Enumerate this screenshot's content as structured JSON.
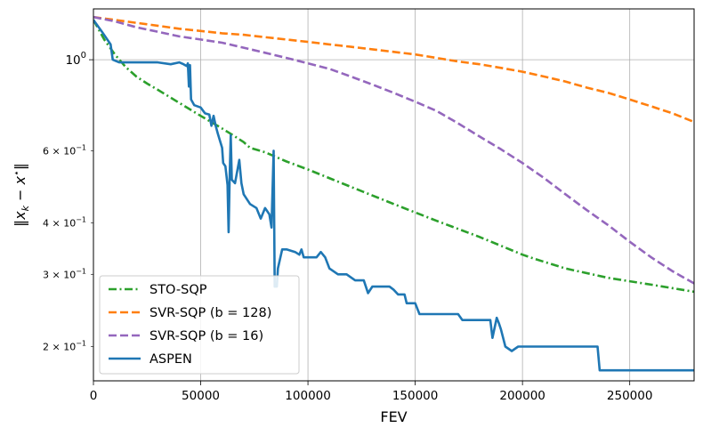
{
  "chart_data": {
    "type": "line",
    "xlabel": "FEV",
    "ylabel": "‖x_k − x*‖",
    "xlim": [
      0,
      280000
    ],
    "ylim": [
      0.165,
      1.33
    ],
    "yscale": "log",
    "grid": true,
    "legend_loc": "lower-left",
    "x_ticks": [
      {
        "value": 0,
        "label": "0"
      },
      {
        "value": 50000,
        "label": "50000"
      },
      {
        "value": 100000,
        "label": "100000"
      },
      {
        "value": 150000,
        "label": "150000"
      },
      {
        "value": 200000,
        "label": "200000"
      },
      {
        "value": 250000,
        "label": "250000"
      }
    ],
    "y_major_ticks": [
      {
        "value": 1.0,
        "label": "10^0",
        "mantissa": "",
        "exponent": "0"
      }
    ],
    "y_minor_ticks": [
      {
        "value": 0.2,
        "mantissa": "2",
        "exponent": "−1"
      },
      {
        "value": 0.3,
        "mantissa": "3",
        "exponent": "−1"
      },
      {
        "value": 0.4,
        "mantissa": "4",
        "exponent": "−1"
      },
      {
        "value": 0.6,
        "mantissa": "6",
        "exponent": "−1"
      }
    ],
    "series": [
      {
        "name": "STO-SQP",
        "color": "#2ca02c",
        "dash": "dashdot",
        "points": [
          [
            0,
            1.25
          ],
          [
            5000,
            1.12
          ],
          [
            10000,
            1.03
          ],
          [
            15000,
            0.96
          ],
          [
            20000,
            0.91
          ],
          [
            25000,
            0.875
          ],
          [
            30000,
            0.845
          ],
          [
            40000,
            0.785
          ],
          [
            50000,
            0.73
          ],
          [
            60000,
            0.68
          ],
          [
            65000,
            0.655
          ],
          [
            70000,
            0.63
          ],
          [
            73000,
            0.61
          ],
          [
            80000,
            0.595
          ],
          [
            90000,
            0.565
          ],
          [
            100000,
            0.54
          ],
          [
            120000,
            0.49
          ],
          [
            140000,
            0.445
          ],
          [
            160000,
            0.405
          ],
          [
            180000,
            0.37
          ],
          [
            200000,
            0.335
          ],
          [
            205000,
            0.328
          ],
          [
            220000,
            0.31
          ],
          [
            240000,
            0.294
          ],
          [
            260000,
            0.283
          ],
          [
            280000,
            0.272
          ]
        ]
      },
      {
        "name": "SVR-SQP  (b = 128)",
        "color": "#ff7f0e",
        "dash": "dashed",
        "points": [
          [
            0,
            1.27
          ],
          [
            10000,
            1.25
          ],
          [
            20000,
            1.23
          ],
          [
            30000,
            1.21
          ],
          [
            40000,
            1.19
          ],
          [
            50000,
            1.175
          ],
          [
            60000,
            1.16
          ],
          [
            70000,
            1.15
          ],
          [
            80000,
            1.135
          ],
          [
            90000,
            1.12
          ],
          [
            100000,
            1.105
          ],
          [
            110000,
            1.09
          ],
          [
            120000,
            1.075
          ],
          [
            130000,
            1.06
          ],
          [
            140000,
            1.045
          ],
          [
            150000,
            1.03
          ],
          [
            160000,
            1.01
          ],
          [
            170000,
            0.99
          ],
          [
            180000,
            0.975
          ],
          [
            190000,
            0.955
          ],
          [
            200000,
            0.935
          ],
          [
            210000,
            0.91
          ],
          [
            220000,
            0.885
          ],
          [
            230000,
            0.855
          ],
          [
            240000,
            0.83
          ],
          [
            250000,
            0.8
          ],
          [
            260000,
            0.77
          ],
          [
            270000,
            0.74
          ],
          [
            280000,
            0.705
          ]
        ]
      },
      {
        "name": "SVR-SQP  (b = 16)",
        "color": "#9467bd",
        "dash": "dashed",
        "points": [
          [
            0,
            1.27
          ],
          [
            10000,
            1.24
          ],
          [
            20000,
            1.2
          ],
          [
            30000,
            1.17
          ],
          [
            40000,
            1.14
          ],
          [
            50000,
            1.12
          ],
          [
            60000,
            1.1
          ],
          [
            70000,
            1.07
          ],
          [
            80000,
            1.04
          ],
          [
            90000,
            1.01
          ],
          [
            100000,
            0.98
          ],
          [
            110000,
            0.95
          ],
          [
            120000,
            0.91
          ],
          [
            130000,
            0.87
          ],
          [
            140000,
            0.83
          ],
          [
            150000,
            0.79
          ],
          [
            160000,
            0.75
          ],
          [
            170000,
            0.7
          ],
          [
            180000,
            0.65
          ],
          [
            190000,
            0.605
          ],
          [
            200000,
            0.56
          ],
          [
            210000,
            0.515
          ],
          [
            220000,
            0.47
          ],
          [
            230000,
            0.43
          ],
          [
            240000,
            0.395
          ],
          [
            250000,
            0.36
          ],
          [
            260000,
            0.33
          ],
          [
            270000,
            0.305
          ],
          [
            280000,
            0.285
          ]
        ]
      },
      {
        "name": "ASPEN",
        "color": "#1f77b4",
        "dash": "solid",
        "points": [
          [
            0,
            1.25
          ],
          [
            4000,
            1.17
          ],
          [
            8000,
            1.09
          ],
          [
            9000,
            1.0
          ],
          [
            12000,
            0.985
          ],
          [
            20000,
            0.985
          ],
          [
            30000,
            0.985
          ],
          [
            36000,
            0.975
          ],
          [
            40000,
            0.985
          ],
          [
            42000,
            0.975
          ],
          [
            43500,
            0.965
          ],
          [
            44000,
            0.98
          ],
          [
            44500,
            0.86
          ],
          [
            45000,
            0.97
          ],
          [
            45500,
            0.8
          ],
          [
            47000,
            0.775
          ],
          [
            50000,
            0.765
          ],
          [
            52000,
            0.74
          ],
          [
            54000,
            0.735
          ],
          [
            55000,
            0.69
          ],
          [
            56000,
            0.73
          ],
          [
            57000,
            0.69
          ],
          [
            58000,
            0.66
          ],
          [
            60000,
            0.61
          ],
          [
            60500,
            0.56
          ],
          [
            61500,
            0.55
          ],
          [
            62500,
            0.495
          ],
          [
            63000,
            0.38
          ],
          [
            63500,
            0.52
          ],
          [
            64000,
            0.655
          ],
          [
            64500,
            0.51
          ],
          [
            66000,
            0.5
          ],
          [
            68000,
            0.57
          ],
          [
            69000,
            0.5
          ],
          [
            70000,
            0.47
          ],
          [
            73000,
            0.445
          ],
          [
            76000,
            0.435
          ],
          [
            78000,
            0.41
          ],
          [
            80000,
            0.435
          ],
          [
            82000,
            0.42
          ],
          [
            83000,
            0.39
          ],
          [
            84000,
            0.6
          ],
          [
            84500,
            0.28
          ],
          [
            85500,
            0.28
          ],
          [
            86000,
            0.31
          ],
          [
            88000,
            0.345
          ],
          [
            90000,
            0.345
          ],
          [
            94000,
            0.34
          ],
          [
            96000,
            0.335
          ],
          [
            97000,
            0.345
          ],
          [
            98000,
            0.33
          ],
          [
            104000,
            0.33
          ],
          [
            106000,
            0.34
          ],
          [
            108000,
            0.33
          ],
          [
            110000,
            0.31
          ],
          [
            114000,
            0.3
          ],
          [
            118000,
            0.3
          ],
          [
            122000,
            0.29
          ],
          [
            126000,
            0.29
          ],
          [
            128000,
            0.27
          ],
          [
            130000,
            0.28
          ],
          [
            138000,
            0.28
          ],
          [
            140000,
            0.275
          ],
          [
            142000,
            0.268
          ],
          [
            145000,
            0.268
          ],
          [
            146000,
            0.255
          ],
          [
            150000,
            0.255
          ],
          [
            152000,
            0.24
          ],
          [
            170000,
            0.24
          ],
          [
            172000,
            0.232
          ],
          [
            185000,
            0.232
          ],
          [
            186000,
            0.21
          ],
          [
            188000,
            0.235
          ],
          [
            189000,
            0.228
          ],
          [
            190000,
            0.22
          ],
          [
            192000,
            0.2
          ],
          [
            195000,
            0.195
          ],
          [
            198000,
            0.2
          ],
          [
            235000,
            0.2
          ],
          [
            236000,
            0.175
          ],
          [
            280000,
            0.175
          ]
        ]
      }
    ]
  }
}
